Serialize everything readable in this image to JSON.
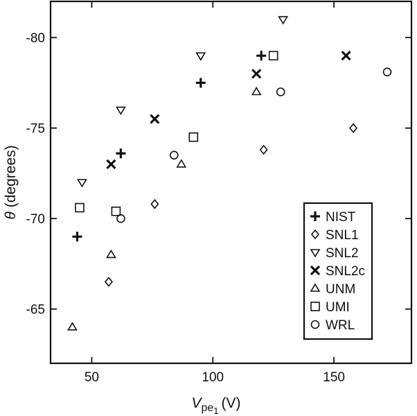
{
  "chart_data": {
    "type": "scatter",
    "xlabel_main": "V",
    "xlabel_sub": "pe",
    "xlabel_subsub": "1",
    "xlabel_unit": "(V)",
    "ylabel_symbol": "θ",
    "ylabel_unit": "(degrees)",
    "xlim": [
      33,
      182
    ],
    "ylim": [
      -62,
      -82
    ],
    "x_ticks": [
      50,
      100,
      150
    ],
    "x_tick_labels": [
      "50",
      "100",
      "150"
    ],
    "y_ticks": [
      -65,
      -70,
      -75,
      -80
    ],
    "y_tick_labels": [
      "-65",
      "-70",
      "-75",
      "-80"
    ],
    "legend_placement": "bottom-right",
    "series": [
      {
        "name": "NIST",
        "marker": "plus",
        "points": [
          [
            44,
            -69.0
          ],
          [
            62,
            -73.6
          ],
          [
            95,
            -77.5
          ],
          [
            120,
            -79.0
          ]
        ]
      },
      {
        "name": "SNL1",
        "marker": "diamond",
        "points": [
          [
            57,
            -66.5
          ],
          [
            76,
            -70.8
          ],
          [
            121,
            -73.8
          ],
          [
            158,
            -75.0
          ]
        ]
      },
      {
        "name": "SNL2",
        "marker": "triangle-down",
        "points": [
          [
            46,
            -72.0
          ],
          [
            62,
            -76.0
          ],
          [
            95,
            -79.0
          ],
          [
            129,
            -81.0
          ]
        ]
      },
      {
        "name": "SNL2c",
        "marker": "cross",
        "points": [
          [
            58,
            -73.0
          ],
          [
            76,
            -75.5
          ],
          [
            118,
            -78.0
          ],
          [
            155,
            -79.0
          ]
        ]
      },
      {
        "name": "UNM",
        "marker": "triangle-up",
        "points": [
          [
            42,
            -64.0
          ],
          [
            58,
            -68.0
          ],
          [
            87,
            -73.0
          ],
          [
            118,
            -77.0
          ]
        ]
      },
      {
        "name": "UMI",
        "marker": "square",
        "points": [
          [
            45,
            -70.6
          ],
          [
            60,
            -70.4
          ],
          [
            92,
            -74.5
          ],
          [
            125,
            -79.0
          ]
        ]
      },
      {
        "name": "WRL",
        "marker": "circle",
        "points": [
          [
            62,
            -70.0
          ],
          [
            84,
            -73.5
          ],
          [
            128,
            -77.0
          ],
          [
            172,
            -78.1
          ]
        ]
      }
    ]
  }
}
